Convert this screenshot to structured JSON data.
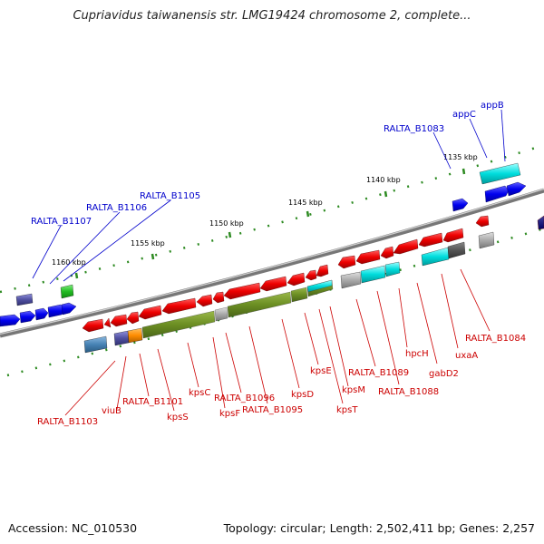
{
  "title": "Cupriavidus taiwanensis str. LMG19424 chromosome 2, complete...",
  "footer": {
    "accession": "Accession: NC_010530",
    "topology": "Topology: circular; Length: 2,502,411 bp; Genes: 2,257"
  },
  "colors": {
    "backbone": "#8a8a8a",
    "tick_marks": "#2e8b22",
    "forward_gene": "#0000ee",
    "reverse_gene": "#ee0000",
    "capsule_cluster": "#6b8e23",
    "label_forward": "#0000cc",
    "label_reverse": "#cc0000",
    "cog_cyan": "#00cccc",
    "cog_gray": "#999999",
    "cog_orange": "#ff8c00",
    "cog_purple": "#5050a0",
    "cog_steelblue": "#4682b4",
    "cog_green": "#22bb22"
  },
  "scale_labels": [
    "1135 kbp",
    "1140 kbp",
    "1145 kbp",
    "1150 kbp",
    "1155 kbp",
    "1160 kbp"
  ],
  "forward_labels": [
    "appB",
    "appC",
    "RALTA_B1083",
    "RALTA_B1105",
    "RALTA_B1106",
    "RALTA_B1107"
  ],
  "reverse_labels": [
    "RALTA_B1084",
    "uxaA",
    "gabD2",
    "hpcH",
    "RALTA_B1088",
    "RALTA_B1089",
    "kpsM",
    "kpsT",
    "kpsE",
    "kpsD",
    "RALTA_B1095",
    "RALTA_B1096",
    "kpsF",
    "kpsC",
    "kpsS",
    "RALTA_B1101",
    "viuB",
    "RALTA_B1103"
  ]
}
